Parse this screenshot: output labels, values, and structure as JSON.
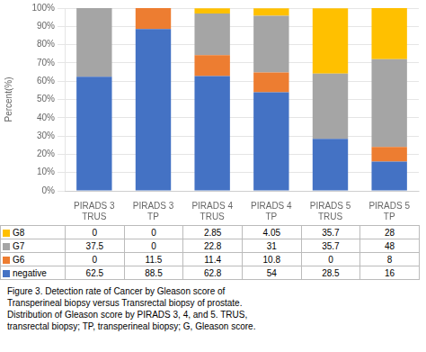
{
  "chart_data": {
    "type": "bar",
    "stacked": true,
    "categories": [
      "PIRADS 3\nTRUS",
      "PIRADS 3\nTP",
      "PIRADS 4\nTRUS",
      "PIRADS 4\nTP",
      "PIRADS 5\nTRUS",
      "PIRADS 5\nTP"
    ],
    "series": [
      {
        "name": "negative",
        "color": "#4472C4",
        "values": [
          62.5,
          88.5,
          62.8,
          54,
          28.5,
          16
        ]
      },
      {
        "name": "G6",
        "color": "#ED7D31",
        "values": [
          0,
          11.5,
          11.4,
          10.8,
          0,
          8
        ]
      },
      {
        "name": "G7",
        "color": "#A5A5A5",
        "values": [
          37.5,
          0,
          22.8,
          31,
          35.7,
          48
        ]
      },
      {
        "name": "G8",
        "color": "#FFC000",
        "values": [
          0,
          0,
          2.85,
          4.05,
          35.7,
          28
        ]
      }
    ],
    "ylabel": "Percent(%)",
    "ylim": [
      0,
      100
    ],
    "yticks": [
      {
        "value": 0,
        "label": "0%"
      },
      {
        "value": 10,
        "label": "10%"
      },
      {
        "value": 20,
        "label": "20%"
      },
      {
        "value": 30,
        "label": "30%"
      },
      {
        "value": 40,
        "label": "40%"
      },
      {
        "value": 50,
        "label": "50%"
      },
      {
        "value": 60,
        "label": "60%"
      },
      {
        "value": 70,
        "label": "70%"
      },
      {
        "value": 80,
        "label": "80%"
      },
      {
        "value": 90,
        "label": "90%"
      },
      {
        "value": 100,
        "label": "100%"
      }
    ],
    "grid": true,
    "annotations": [
      "Figure 3. Detection rate of Cancer by Gleason score of",
      "Transperineal biopsy versus Transrectal biopsy of prostate.",
      "Distribution of Gleason score by PIRADS 3, 4, and 5. TRUS,",
      "transrectal biopsy; TP, transperineal biopsy; G, Gleason score."
    ]
  }
}
